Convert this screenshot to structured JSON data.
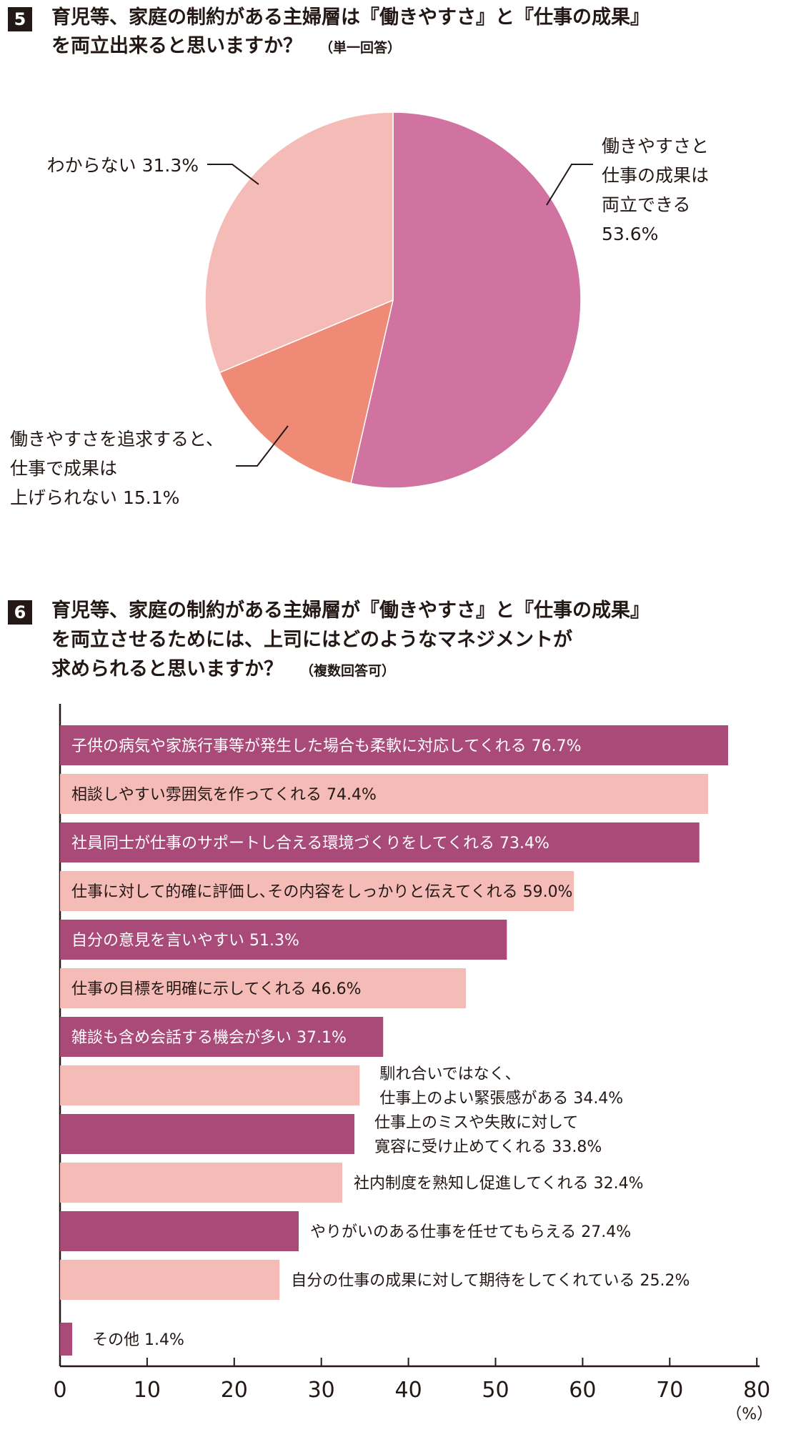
{
  "q5": {
    "number": "5",
    "title_line1": "育児等、家庭の制約がある主婦層は『働きやすさ』と『仕事の成果』",
    "title_line2": "を両立出来ると思いますか？",
    "note": "（単一回答）"
  },
  "q6": {
    "number": "6",
    "title_line1": "育児等、家庭の制約がある主婦層が『働きやすさ』と『仕事の成果』",
    "title_line2": "を両立させるためには、上司にはどのようなマネジメントが",
    "title_line3": "求められると思いますか？",
    "note": "（複数回答可）"
  },
  "chart_data": [
    {
      "type": "pie",
      "slices": [
        {
          "label_lines": [
            "働きやすさと",
            "仕事の成果は",
            "両立できる",
            "53.6%"
          ],
          "value": 53.6,
          "color": "#d173a0"
        },
        {
          "label_lines": [
            "働きやすさを追求すると、",
            "仕事で成果は",
            "上げられない 15.1%"
          ],
          "value": 15.1,
          "color": "#ee8a75"
        },
        {
          "label_lines": [
            "わからない 31.3%"
          ],
          "value": 31.3,
          "color": "#f4bbb7"
        }
      ]
    },
    {
      "type": "bar",
      "orientation": "horizontal",
      "xlim": [
        0,
        80
      ],
      "xticks": [
        "0",
        "10",
        "20",
        "30",
        "40",
        "50",
        "60",
        "70",
        "80"
      ],
      "unit_label": "（%）",
      "colors": {
        "dark": "#a94a78",
        "light": "#f4bbb7"
      },
      "bars": [
        {
          "label_lines": [
            "子供の病気や家族行事等が発生した場合も柔軟に対応してくれる 76.7%"
          ],
          "value": 76.7
        },
        {
          "label_lines": [
            "相談しやすい雰囲気を作ってくれる 74.4%"
          ],
          "value": 74.4
        },
        {
          "label_lines": [
            "社員同士が仕事のサポートし合える環境づくりをしてくれる 73.4%"
          ],
          "value": 73.4
        },
        {
          "label_lines": [
            "仕事に対して的確に評価し､その内容をしっかりと伝えてくれる 59.0%"
          ],
          "value": 59.0
        },
        {
          "label_lines": [
            "自分の意見を言いやすい 51.3%"
          ],
          "value": 51.3
        },
        {
          "label_lines": [
            "仕事の目標を明確に示してくれる 46.6%"
          ],
          "value": 46.6
        },
        {
          "label_lines": [
            "雑談も含め会話する機会が多い 37.1%"
          ],
          "value": 37.1
        },
        {
          "label_lines": [
            "馴れ合いではなく、",
            "仕事上のよい緊張感がある 34.4%"
          ],
          "value": 34.4
        },
        {
          "label_lines": [
            "仕事上のミスや失敗に対して",
            "寛容に受け止めてくれる 33.8%"
          ],
          "value": 33.8
        },
        {
          "label_lines": [
            "社内制度を熟知し促進してくれる 32.4%"
          ],
          "value": 32.4
        },
        {
          "label_lines": [
            "やりがいのある仕事を任せてもらえる 27.4%"
          ],
          "value": 27.4
        },
        {
          "label_lines": [
            "自分の仕事の成果に対して期待をしてくれている 25.2%"
          ],
          "value": 25.2
        },
        {
          "label_lines": [
            "その他 1.4%"
          ],
          "value": 1.4
        }
      ]
    }
  ]
}
